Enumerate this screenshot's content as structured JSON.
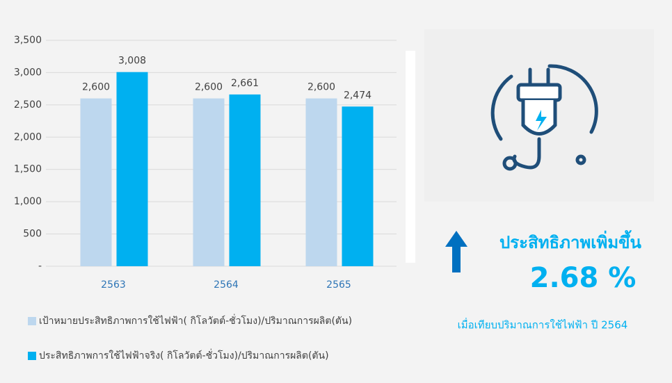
{
  "chart_data": {
    "type": "bar",
    "categories": [
      "2563",
      "2564",
      "2565"
    ],
    "series": [
      {
        "name": "เป้าหมายประสิทธิภาพการใช้ไฟฟ้า(   กิโลวัตต์-ชั่วโมง)/ปริมาณการผลิต(ตัน)",
        "color": "#bdd7ee",
        "values": [
          2600,
          2600,
          2600
        ],
        "value_labels": [
          "2,600",
          "2,600",
          "2,600"
        ]
      },
      {
        "name": "ประสิทธิภาพการใช้ไฟฟ้าจริง(   กิโลวัตต์-ชั่วโมง)/ปริมาณการผลิต(ตัน)",
        "color": "#00b0f0",
        "values": [
          3008,
          2661,
          2474
        ],
        "value_labels": [
          "3,008",
          "2,661",
          "2,474"
        ]
      }
    ],
    "ylim": [
      0,
      3500
    ],
    "yticks": [
      {
        "value": 0,
        "label": "-"
      },
      500,
      {
        "value": 1000,
        "label": "1,000"
      },
      {
        "value": 1500,
        "label": "1,500"
      },
      {
        "value": 2000,
        "label": "2,000"
      },
      {
        "value": 2500,
        "label": "2,500"
      },
      {
        "value": 3000,
        "label": "3,000"
      },
      {
        "value": 3500,
        "label": "3,500"
      }
    ],
    "grid": true,
    "legend": "bottom",
    "annotations": [
      "ประสิทธิภาพเพิ่มขึ้น",
      "2.68 %",
      "เมื่อเทียบปริมาณการใช้ไฟฟ้า ปี 2564"
    ]
  }
}
